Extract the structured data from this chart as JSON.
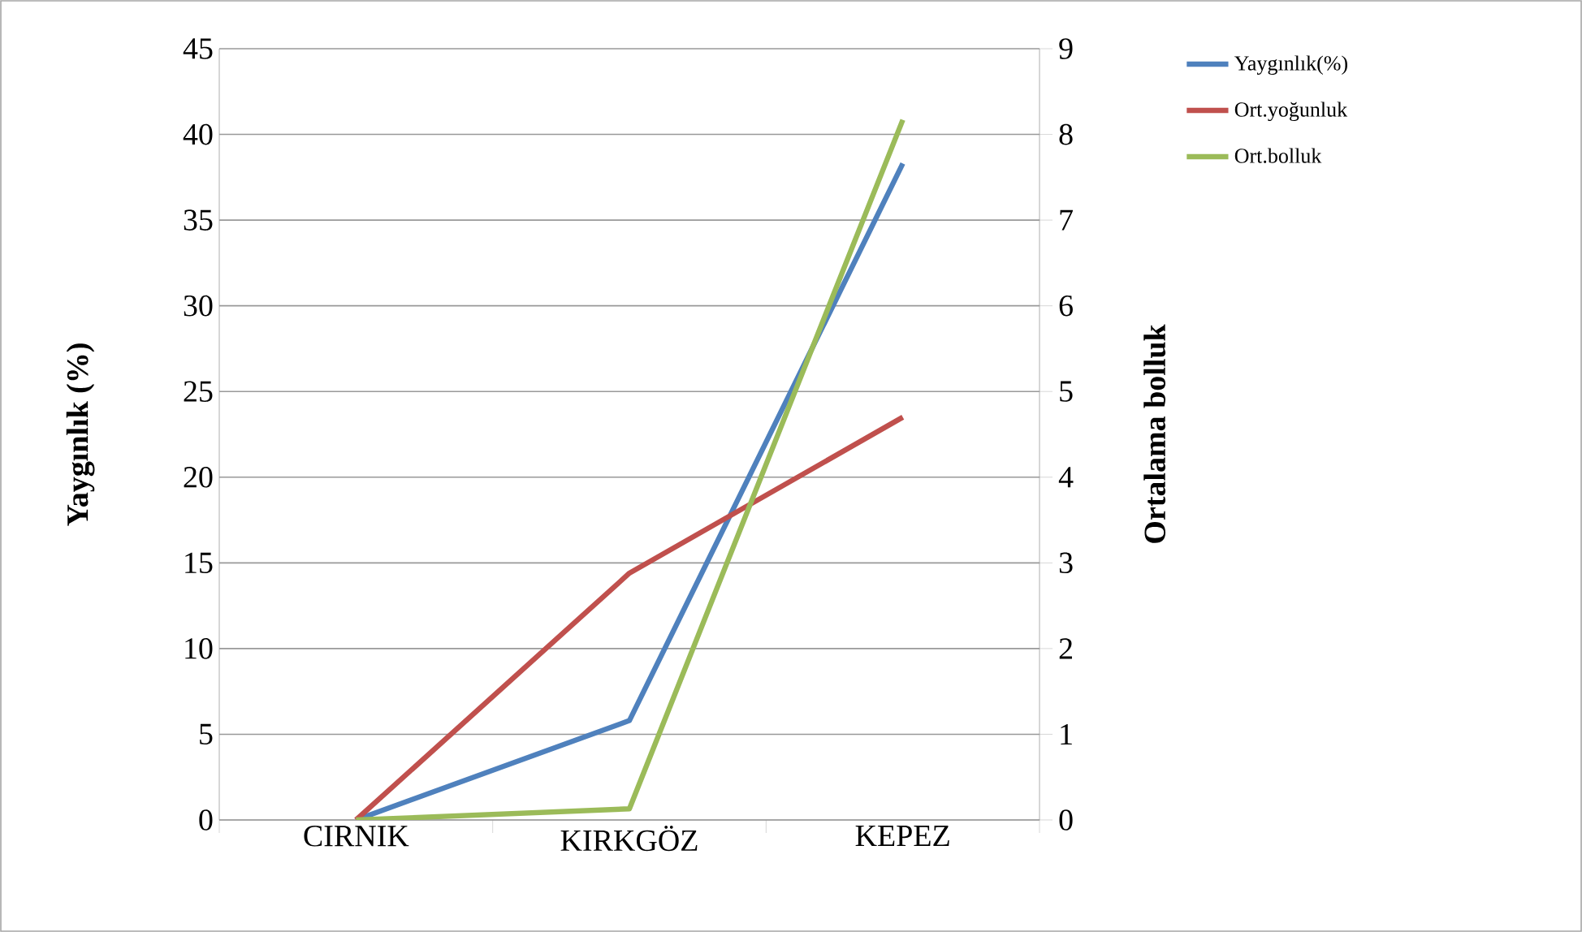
{
  "chart_data": {
    "type": "line",
    "categories": [
      "CIRNIK",
      "KIRKGÖZ",
      "KEPEZ"
    ],
    "ylabel": "Yaygınlık (%)",
    "y2label": "Ortalama bolluk",
    "ylim": [
      0,
      45
    ],
    "yticks": [
      0,
      5,
      10,
      15,
      20,
      25,
      30,
      35,
      40,
      45
    ],
    "y2lim": [
      0,
      9
    ],
    "y2ticks": [
      0,
      1,
      2,
      3,
      4,
      5,
      6,
      7,
      8,
      9
    ],
    "grid": "y",
    "legend": "top right",
    "series": [
      {
        "name": "Yaygınlık(%)",
        "color": "#4f81bd",
        "values": [
          0,
          5.8,
          38.3
        ]
      },
      {
        "name": "Ort.yoğunluk",
        "color": "#c0504d",
        "axis": "y2",
        "values": [
          0,
          2.88,
          4.7
        ]
      },
      {
        "name": "Ort.bolluk",
        "color": "#9bbb59",
        "axis": "y2",
        "values": [
          0,
          0.13,
          8.17
        ]
      }
    ]
  }
}
